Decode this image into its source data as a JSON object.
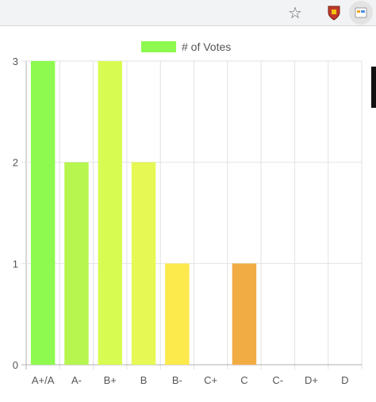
{
  "browser": {
    "star_icon": "star-icon",
    "extension_icons": [
      "shield-icon",
      "extension-icon"
    ]
  },
  "chart_data": {
    "type": "bar",
    "categories": [
      "A+/A",
      "A-",
      "B+",
      "B",
      "B-",
      "C+",
      "C",
      "C-",
      "D+",
      "D"
    ],
    "series": [
      {
        "name": "# of Votes",
        "values": [
          3,
          2,
          3,
          2,
          1,
          0,
          1,
          0,
          0,
          0
        ],
        "colors": [
          "#8ef94f",
          "#b6f64e",
          "#d8fb52",
          "#e6f853",
          "#fce94c",
          "#f7d04b",
          "#f2ac44",
          "#ec8f40",
          "#e5723d",
          "#e0573a"
        ]
      }
    ],
    "legend_color": "#8ef94f",
    "ylim": [
      0,
      3
    ],
    "yticks": [
      0,
      1,
      2,
      3
    ],
    "grid": true,
    "legend": "top"
  }
}
